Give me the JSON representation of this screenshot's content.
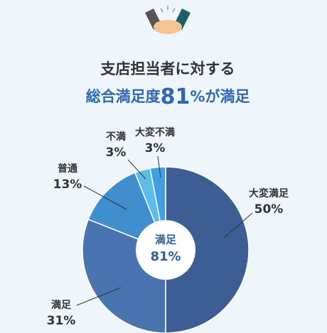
{
  "chart_data": {
    "type": "pie",
    "title": "支店担当者に対する",
    "subtitle_parts": [
      "総合満足度",
      "81",
      "%が満足"
    ],
    "center_label": "満足",
    "center_value_label": "81%",
    "categories": [
      "大変満足",
      "満足",
      "普通",
      "不満",
      "大変不満"
    ],
    "values": [
      50,
      31,
      13,
      3,
      3
    ],
    "value_labels": [
      "50%",
      "31%",
      "13%",
      "3%",
      "3%"
    ],
    "colors": [
      "#3c5e95",
      "#4a74b0",
      "#3f8fcf",
      "#5cbcea",
      "#3fa0e2"
    ]
  }
}
